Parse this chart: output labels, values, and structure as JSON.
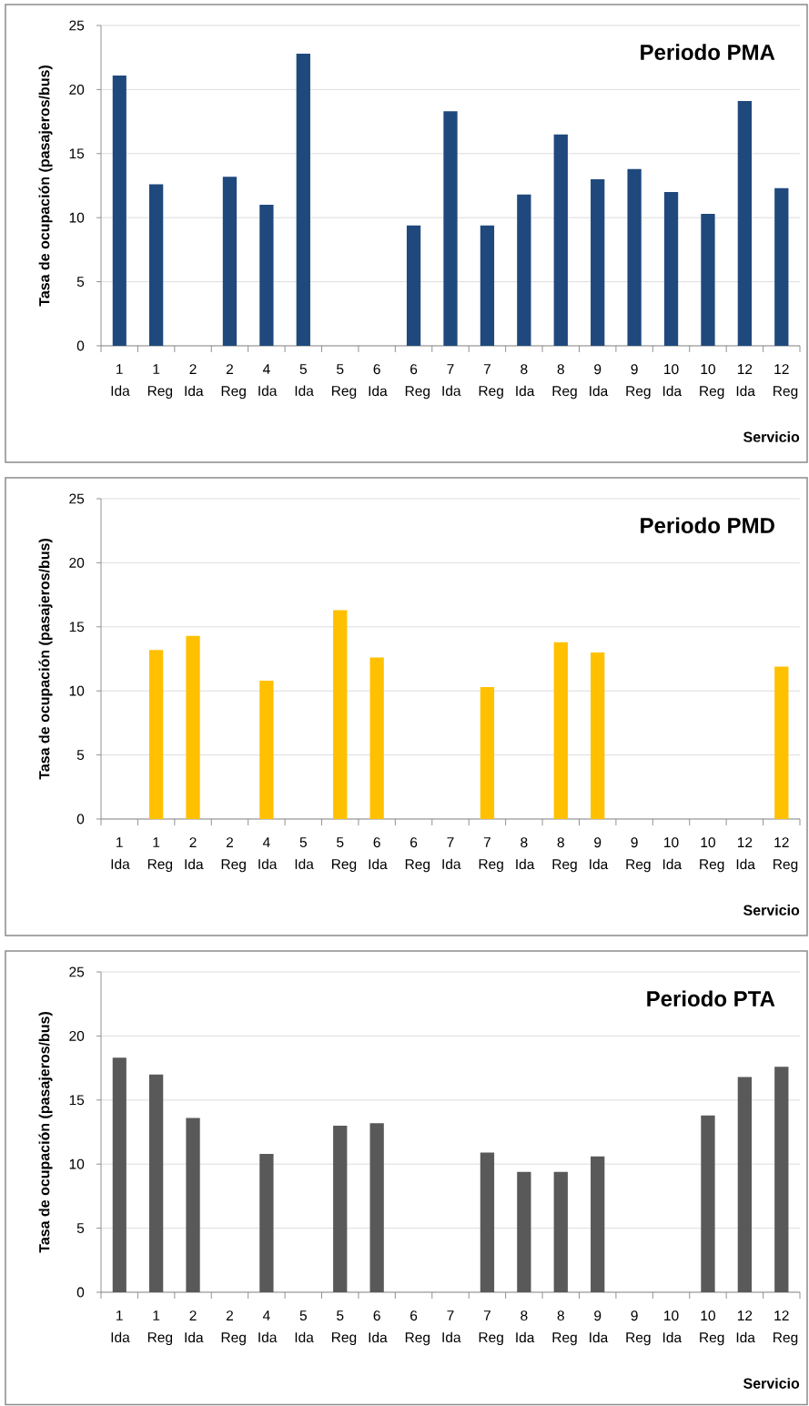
{
  "chart_data": [
    {
      "type": "bar",
      "title": "Periodo PMA",
      "xlabel": "Servicio",
      "ylabel": "Tasa de ocupación (pasajeros/bus)",
      "categories": [
        "1 Ida",
        "1 Reg",
        "2 Ida",
        "2 Reg",
        "4 Ida",
        "5 Ida",
        "5 Reg",
        "6 Ida",
        "6 Reg",
        "7 Ida",
        "7 Reg",
        "8 Ida",
        "8 Reg",
        "9 Ida",
        "9 Reg",
        "10 Ida",
        "10 Reg",
        "12 Ida",
        "12 Reg"
      ],
      "values": [
        21.1,
        12.6,
        null,
        13.2,
        11.0,
        22.8,
        null,
        null,
        9.4,
        18.3,
        9.4,
        11.8,
        16.5,
        13.0,
        13.8,
        12.0,
        10.3,
        19.1,
        12.3
      ],
      "color": "#1f497d",
      "ylim": [
        0,
        25
      ],
      "yticks": [
        0,
        5,
        10,
        15,
        20,
        25
      ],
      "grid": "y"
    },
    {
      "type": "bar",
      "title": "Periodo PMD",
      "xlabel": "Servicio",
      "ylabel": "Tasa de ocupación (pasajeros/bus)",
      "categories": [
        "1 Ida",
        "1 Reg",
        "2 Ida",
        "2 Reg",
        "4 Ida",
        "5 Ida",
        "5 Reg",
        "6 Ida",
        "6 Reg",
        "7 Ida",
        "7 Reg",
        "8 Ida",
        "8 Reg",
        "9 Ida",
        "9 Reg",
        "10 Ida",
        "10 Reg",
        "12 Ida",
        "12 Reg"
      ],
      "values": [
        null,
        13.2,
        14.3,
        null,
        10.8,
        null,
        16.3,
        12.6,
        null,
        null,
        10.3,
        null,
        13.8,
        13.0,
        null,
        null,
        null,
        null,
        11.9
      ],
      "color": "#ffc000",
      "ylim": [
        0,
        25
      ],
      "yticks": [
        0,
        5,
        10,
        15,
        20,
        25
      ],
      "grid": "y"
    },
    {
      "type": "bar",
      "title": "Periodo PTA",
      "xlabel": "Servicio",
      "ylabel": "Tasa de ocupación (pasajeros/bus)",
      "categories": [
        "1 Ida",
        "1 Reg",
        "2 Ida",
        "2 Reg",
        "4 Ida",
        "5 Ida",
        "5 Reg",
        "6 Ida",
        "6 Reg",
        "7 Ida",
        "7 Reg",
        "8 Ida",
        "8 Reg",
        "9 Ida",
        "9 Reg",
        "10 Ida",
        "10 Reg",
        "12 Ida",
        "12 Reg"
      ],
      "values": [
        18.3,
        17.0,
        13.6,
        null,
        10.8,
        null,
        13.0,
        13.2,
        null,
        null,
        10.9,
        9.4,
        9.4,
        10.6,
        null,
        null,
        13.8,
        16.8,
        17.6
      ],
      "color": "#595959",
      "ylim": [
        0,
        25
      ],
      "yticks": [
        0,
        5,
        10,
        15,
        20,
        25
      ],
      "grid": "y"
    }
  ]
}
